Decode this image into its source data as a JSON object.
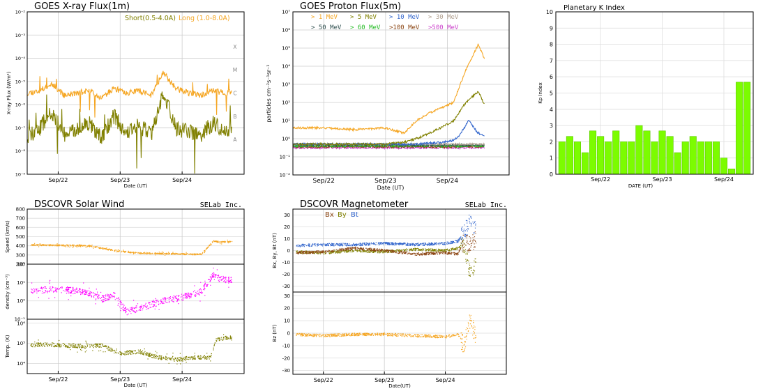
{
  "colors": {
    "short": "#808000",
    "long": "#f5a623",
    "kbar": "#7cfc00",
    "kbar_edge": "#5bc800",
    "speed": "#f5a623",
    "density": "#ff00ff",
    "temp": "#808000",
    "bx": "#8b4513",
    "by": "#808000",
    "bt": "#3366cc",
    "bz": "#f5a623",
    "p1": "#f5a623",
    "p5": "#808000",
    "p10": "#3366cc",
    "p30": "#b0a090",
    "p50": "#2f4f4f",
    "p60": "#22bb22",
    "p100": "#8b4513",
    "p500": "#cc44cc"
  },
  "chart_data": [
    {
      "id": "xray",
      "type": "line",
      "title": "GOES X-ray Flux(1m)",
      "ylabel": "X-ray Flux (W/m²)",
      "xlabel": "Date (UT)",
      "yscale": "log",
      "ylim_exp": [
        -9,
        -2
      ],
      "ytick_labels": [
        "10⁻⁹",
        "10⁻⁸",
        "10⁻⁷",
        "10⁻⁶",
        "10⁻⁵",
        "10⁻⁴",
        "10⁻³",
        "10⁻²"
      ],
      "class_labels": [
        {
          "label": "A",
          "exp": -7.5
        },
        {
          "label": "B",
          "exp": -6.5
        },
        {
          "label": "C",
          "exp": -5.5
        },
        {
          "label": "M",
          "exp": -4.5
        },
        {
          "label": "X",
          "exp": -3.5
        }
      ],
      "xlim_days": [
        21.5,
        25.0
      ],
      "xticks": [
        {
          "day": 22,
          "label": "Sep/22"
        },
        {
          "day": 23,
          "label": "Sep/23"
        },
        {
          "day": 24,
          "label": "Sep/24"
        }
      ],
      "legend": [
        {
          "label": "Short(0.5-4.0A)",
          "color_key": "short"
        },
        {
          "label": "Long (1.0-8.0A)",
          "color_key": "long"
        }
      ],
      "series": [
        {
          "name": "Long (1.0-8.0A)",
          "color_key": "long",
          "day": [
            21.5,
            21.7,
            21.9,
            22.1,
            22.3,
            22.5,
            22.7,
            22.9,
            23.1,
            23.3,
            23.5,
            23.7,
            23.9,
            24.1,
            24.3,
            24.5,
            24.7,
            24.9
          ],
          "log10": [
            -5.5,
            -5.4,
            -5.1,
            -5.6,
            -5.5,
            -5.4,
            -5.7,
            -5.3,
            -5.5,
            -5.4,
            -5.6,
            -4.6,
            -5.3,
            -5.5,
            -5.6,
            -5.4,
            -5.5,
            -5.4
          ]
        },
        {
          "name": "Short(0.5-4.0A)",
          "color_key": "short",
          "day": [
            21.5,
            21.7,
            21.9,
            22.1,
            22.3,
            22.5,
            22.7,
            22.9,
            23.1,
            23.3,
            23.5,
            23.7,
            23.9,
            24.1,
            24.3,
            24.5,
            24.7,
            24.9
          ],
          "log10": [
            -7.4,
            -7.0,
            -6.3,
            -7.3,
            -7.1,
            -6.8,
            -7.4,
            -6.5,
            -7.2,
            -6.9,
            -7.3,
            -5.5,
            -7.0,
            -7.2,
            -7.3,
            -6.8,
            -7.1,
            -7.1
          ]
        }
      ]
    },
    {
      "id": "proton",
      "type": "line",
      "title": "GOES Proton Flux(5m)",
      "ylabel": "particles cm⁻²s⁻¹sr⁻¹",
      "xlabel": "Date (UT)",
      "yscale": "log",
      "ylim_exp": [
        -2,
        7
      ],
      "ytick_labels": [
        "10⁻²",
        "10⁻¹",
        "10⁰",
        "10¹",
        "10²",
        "10³",
        "10⁴",
        "10⁵",
        "10⁶",
        "10⁷"
      ],
      "xlim_days": [
        21.5,
        25.0
      ],
      "xticks": [
        {
          "day": 22,
          "label": "Sep/22"
        },
        {
          "day": 23,
          "label": "Sep/23"
        },
        {
          "day": 24,
          "label": "Sep/24"
        }
      ],
      "legend": [
        {
          "label": "> 1 MeV",
          "color_key": "p1"
        },
        {
          "label": "> 5 MeV",
          "color_key": "p5"
        },
        {
          "label": "> 10 MeV",
          "color_key": "p10"
        },
        {
          "label": "> 30 MeV",
          "color_key": "p30"
        },
        {
          "label": "> 50 MeV",
          "color_key": "p50"
        },
        {
          "label": "> 60 MeV",
          "color_key": "p60"
        },
        {
          "label": ">100 MeV",
          "color_key": "p100"
        },
        {
          "label": ">500 MeV",
          "color_key": "p500"
        }
      ],
      "series": [
        {
          "name": "> 1 MeV",
          "color_key": "p1",
          "day": [
            21.5,
            22.0,
            22.5,
            23.0,
            23.3,
            23.5,
            23.7,
            23.9,
            24.1,
            24.3,
            24.5,
            24.6
          ],
          "log10": [
            0.6,
            0.6,
            0.5,
            0.6,
            0.3,
            1.0,
            1.4,
            1.7,
            2.0,
            3.8,
            5.2,
            4.4
          ]
        },
        {
          "name": "> 5 MeV",
          "color_key": "p5",
          "day": [
            21.5,
            22.0,
            22.5,
            23.0,
            23.3,
            23.5,
            23.7,
            23.9,
            24.1,
            24.3,
            24.5,
            24.6
          ],
          "log10": [
            -0.3,
            -0.3,
            -0.3,
            -0.3,
            -0.2,
            0.0,
            0.3,
            0.6,
            1.0,
            2.0,
            2.6,
            1.9
          ]
        },
        {
          "name": "> 10 MeV",
          "color_key": "p10",
          "day": [
            21.5,
            22.0,
            22.5,
            23.0,
            23.5,
            23.9,
            24.1,
            24.2,
            24.35,
            24.5,
            24.6
          ],
          "log10": [
            -0.3,
            -0.3,
            -0.3,
            -0.3,
            -0.3,
            -0.2,
            -0.1,
            0.2,
            1.0,
            0.3,
            0.2
          ]
        },
        {
          "name": "> 30 MeV",
          "color_key": "p30",
          "day": [
            21.5,
            24.6
          ],
          "log10": [
            -0.3,
            -0.3
          ]
        },
        {
          "name": "> 50 MeV",
          "color_key": "p50",
          "day": [
            21.5,
            24.6
          ],
          "log10": [
            -0.35,
            -0.35
          ]
        },
        {
          "name": "> 60 MeV",
          "color_key": "p60",
          "day": [
            21.5,
            24.6
          ],
          "log10": [
            -0.4,
            -0.4
          ]
        },
        {
          "name": ">100 MeV",
          "color_key": "p100",
          "day": [
            21.5,
            24.6
          ],
          "log10": [
            -0.45,
            -0.45
          ]
        },
        {
          "name": ">500 MeV",
          "color_key": "p500",
          "day": [
            21.5,
            24.6
          ],
          "log10": [
            -0.5,
            -0.5
          ]
        }
      ]
    },
    {
      "id": "kp",
      "type": "bar",
      "title": "Planetary K Index",
      "ylabel": "Kp Index",
      "xlabel": "DATE (UT)",
      "ylim": [
        0,
        10
      ],
      "yticks": [
        0,
        1,
        2,
        3,
        4,
        5,
        6,
        7,
        8,
        9,
        10
      ],
      "xticks": [
        {
          "bar": 5.5,
          "label": "Sep/22"
        },
        {
          "bar": 13.5,
          "label": "Sep/23"
        },
        {
          "bar": 21.5,
          "label": "Sep/24"
        }
      ],
      "values": [
        2.0,
        2.33,
        2.0,
        1.33,
        2.67,
        2.33,
        2.0,
        2.67,
        2.0,
        2.0,
        3.0,
        2.67,
        2.0,
        2.67,
        2.33,
        1.33,
        2.0,
        2.33,
        2.0,
        2.0,
        2.0,
        1.0,
        0.33,
        5.67,
        5.67
      ]
    },
    {
      "id": "solarwind",
      "type": "scatter",
      "title": "DSCOVR Solar Wind",
      "credit": "SELab Inc.",
      "xlabel": "Date (UT)",
      "xlim_days": [
        21.5,
        25.0
      ],
      "xticks": [
        {
          "day": 22,
          "label": "Sep/22"
        },
        {
          "day": 23,
          "label": "Sep/23"
        },
        {
          "day": 24,
          "label": "Sep/24"
        }
      ],
      "panels": [
        {
          "name": "speed",
          "ylabel": "Speed (km/s)",
          "yscale": "linear",
          "ylim": [
            200,
            800
          ],
          "yticks": [
            200,
            300,
            400,
            500,
            600,
            700,
            800
          ],
          "ytick_labels": [
            "200",
            "300",
            "400",
            "500",
            "600",
            "700",
            "800"
          ],
          "color_key": "speed",
          "day": [
            21.5,
            22.0,
            22.5,
            22.8,
            23.0,
            23.3,
            23.6,
            24.0,
            24.3,
            24.5,
            24.6,
            24.8
          ],
          "value": [
            410,
            405,
            400,
            360,
            340,
            320,
            315,
            310,
            305,
            450,
            440,
            445
          ]
        },
        {
          "name": "density",
          "ylabel": "density (cm⁻³)",
          "yscale": "log",
          "ylim_exp": [
            -1,
            2
          ],
          "yticks": [
            -1,
            0,
            1,
            2
          ],
          "ytick_labels": [
            "10⁻¹",
            "10⁰",
            "10¹",
            "10²"
          ],
          "color_key": "density",
          "day": [
            21.5,
            21.8,
            22.1,
            22.4,
            22.7,
            22.9,
            23.1,
            23.4,
            23.7,
            24.0,
            24.3,
            24.5,
            24.6,
            24.8
          ],
          "log10": [
            0.5,
            0.6,
            0.6,
            0.5,
            0.1,
            0.3,
            -0.6,
            -0.3,
            0.0,
            0.2,
            0.5,
            1.4,
            1.2,
            1.1
          ]
        },
        {
          "name": "temp",
          "ylabel": "Temp. (K)",
          "yscale": "log",
          "ylim_exp": [
            3.5,
            6.2
          ],
          "yticks": [
            4,
            5,
            6
          ],
          "ytick_labels": [
            "10⁴",
            "10⁵",
            "10⁶"
          ],
          "color_key": "temp",
          "day": [
            21.5,
            21.8,
            22.1,
            22.4,
            22.7,
            23.0,
            23.3,
            23.6,
            23.9,
            24.2,
            24.45,
            24.55,
            24.8
          ],
          "log10": [
            4.9,
            4.95,
            4.9,
            4.85,
            4.9,
            4.5,
            4.6,
            4.3,
            4.2,
            4.3,
            4.3,
            5.2,
            5.3
          ]
        }
      ]
    },
    {
      "id": "magnetometer",
      "type": "scatter",
      "title": "DSCOVR Magnetometer",
      "credit": "SELab Inc.",
      "xlabel": "Date(UT)",
      "xlim_days": [
        21.5,
        25.0
      ],
      "xticks": [
        {
          "day": 22,
          "label": "Sep/22"
        },
        {
          "day": 23,
          "label": "Sep/23"
        },
        {
          "day": 24,
          "label": "Sep/24"
        }
      ],
      "legend": [
        {
          "label": "Bx",
          "color_key": "bx"
        },
        {
          "label": "By",
          "color_key": "by"
        },
        {
          "label": "Bt",
          "color_key": "bt"
        }
      ],
      "panels": [
        {
          "name": "bxbybt",
          "ylabel": "Bx, By, Bt (nT)",
          "ylim": [
            -35,
            35
          ],
          "yticks": [
            -30,
            -20,
            -10,
            0,
            10,
            20,
            30
          ],
          "ytick_labels": [
            "-30",
            "-20",
            "-10",
            "0",
            "10",
            "20",
            "30"
          ],
          "series": [
            {
              "name": "Bt",
              "color_key": "bt",
              "day": [
                21.5,
                22.0,
                22.5,
                23.0,
                23.5,
                24.0,
                24.2,
                24.3,
                24.4,
                24.5
              ],
              "value": [
                4,
                5,
                5,
                6,
                5,
                6,
                8,
                15,
                25,
                18
              ]
            },
            {
              "name": "By",
              "color_key": "by",
              "day": [
                21.5,
                22.0,
                22.5,
                23.0,
                23.5,
                24.0,
                24.2,
                24.3,
                24.4,
                24.5
              ],
              "value": [
                -1,
                -2,
                0,
                -1,
                1,
                0,
                2,
                5,
                -20,
                -10
              ]
            },
            {
              "name": "Bx",
              "color_key": "bx",
              "day": [
                21.5,
                22.0,
                22.5,
                23.0,
                23.5,
                24.0,
                24.2,
                24.3,
                24.4,
                24.5
              ],
              "value": [
                -2,
                -1,
                2,
                0,
                -3,
                -2,
                -3,
                8,
                5,
                10
              ]
            }
          ]
        },
        {
          "name": "bz",
          "ylabel": "Bz (nT)",
          "ylim": [
            -33,
            33
          ],
          "yticks": [
            -30,
            -20,
            -10,
            0,
            10,
            20,
            30
          ],
          "ytick_labels": [
            "-30",
            "-20",
            "-10",
            "0",
            "10",
            "20",
            "30"
          ],
          "series": [
            {
              "name": "Bz",
              "color_key": "bz",
              "day": [
                21.5,
                22.0,
                22.5,
                23.0,
                23.5,
                24.0,
                24.2,
                24.3,
                24.4,
                24.5
              ],
              "value": [
                -1,
                -2,
                -1,
                -1,
                -2,
                -3,
                -1,
                -10,
                12,
                -5
              ]
            }
          ]
        }
      ]
    }
  ]
}
